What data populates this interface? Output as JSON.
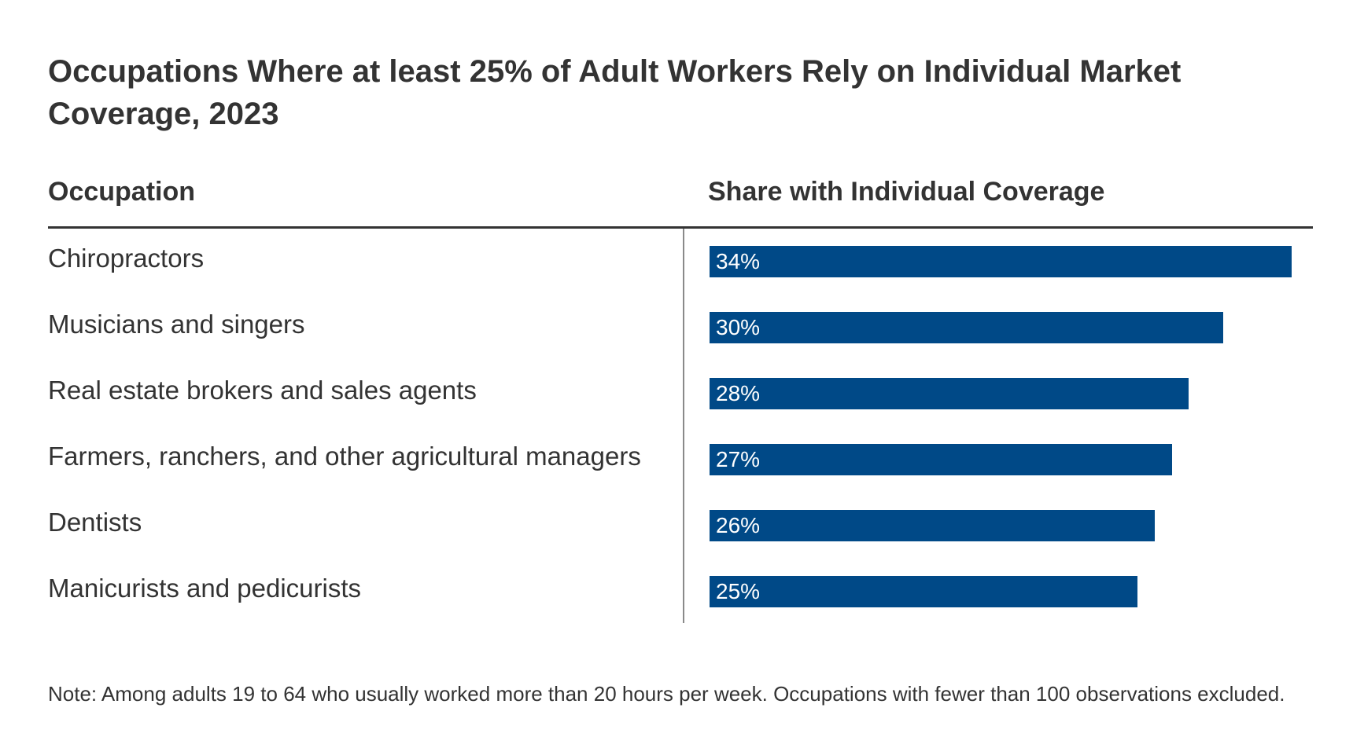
{
  "header": {
    "title": "Occupations Where at least 25% of Adult Workers Rely on Individual Market Coverage, 2023"
  },
  "columns": {
    "occupation": "Occupation",
    "share": "Share with Individual Coverage"
  },
  "note": "Note: Among adults 19 to 64 who usually worked more than 20 hours per week. Occupations with fewer than 100 observations excluded.",
  "colors": {
    "bar": "#004987",
    "text": "#333333",
    "rule": "#333333",
    "divider": "#8a8a8a"
  },
  "chart_data": {
    "type": "bar",
    "orientation": "horizontal",
    "title": "Occupations Where at least 25% of Adult Workers Rely on Individual Market Coverage, 2023",
    "xlabel": "Share with Individual Coverage",
    "ylabel": "Occupation",
    "xlim": [
      0,
      34
    ],
    "grid": false,
    "categories": [
      "Chiropractors",
      "Musicians and singers",
      "Real estate brokers and sales agents",
      "Farmers, ranchers, and other agricultural managers",
      "Dentists",
      "Manicurists and pedicurists"
    ],
    "values": [
      34,
      30,
      28,
      27,
      26,
      25
    ],
    "value_labels": [
      "34%",
      "30%",
      "28%",
      "27%",
      "26%",
      "25%"
    ]
  }
}
